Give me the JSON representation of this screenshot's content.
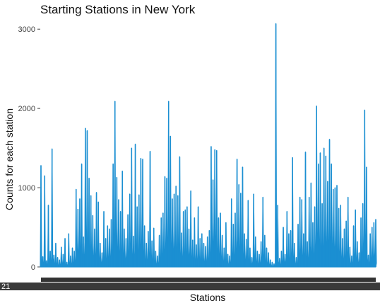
{
  "chart_data": {
    "type": "line",
    "title": "Starting Stations in New York",
    "xlabel": "Stations",
    "ylabel": "Counts for each station",
    "ylim": [
      0,
      3100
    ],
    "yticks": [
      "0",
      "1000",
      "2000",
      "3000"
    ],
    "x_tick_label_visible_prefix": "21",
    "grid": false,
    "color": "#1b8fd2",
    "series": [
      {
        "values": [
          1280,
          130,
          1150,
          80,
          780,
          200,
          1490,
          150,
          300,
          120,
          90,
          250,
          160,
          360,
          60,
          420,
          140,
          240,
          200,
          980,
          730,
          860,
          1300,
          380,
          1750,
          1720,
          1120,
          900,
          650,
          480,
          940,
          820,
          300,
          180,
          700,
          360,
          520,
          480,
          600,
          1300,
          2090,
          1130,
          850,
          700,
          1210,
          480,
          360,
          660,
          920,
          1500,
          390,
          1550,
          760,
          910,
          1370,
          1360,
          520,
          300,
          450,
          1460,
          330,
          490,
          200,
          140,
          400,
          620,
          680,
          1140,
          1120,
          2090,
          1650,
          860,
          920,
          1020,
          900,
          1390,
          430,
          700,
          720,
          760,
          480,
          960,
          340,
          620,
          280,
          760,
          360,
          420,
          300,
          260,
          380,
          460,
          1520,
          1100,
          1480,
          1470,
          620,
          680,
          400,
          240,
          560,
          160,
          140,
          860,
          540,
          680,
          1360,
          1040,
          930,
          1260,
          420,
          350,
          840,
          240,
          120,
          920,
          380,
          200,
          160,
          320,
          880,
          400,
          240,
          180,
          90,
          60,
          40,
          3070,
          780,
          110,
          200,
          500,
          160,
          700,
          420,
          460,
          1380,
          300,
          120,
          540,
          880,
          850,
          420,
          1450,
          320,
          880,
          1060,
          560,
          760,
          2030,
          1300,
          1440,
          800,
          1500,
          1400,
          1080,
          1610,
          1300,
          980,
          1000,
          1030,
          740,
          780,
          360,
          480,
          580,
          880,
          250,
          140,
          520,
          720,
          320,
          180,
          620,
          800,
          1980,
          1260,
          150,
          420,
          500,
          560,
          600
        ]
      }
    ]
  }
}
